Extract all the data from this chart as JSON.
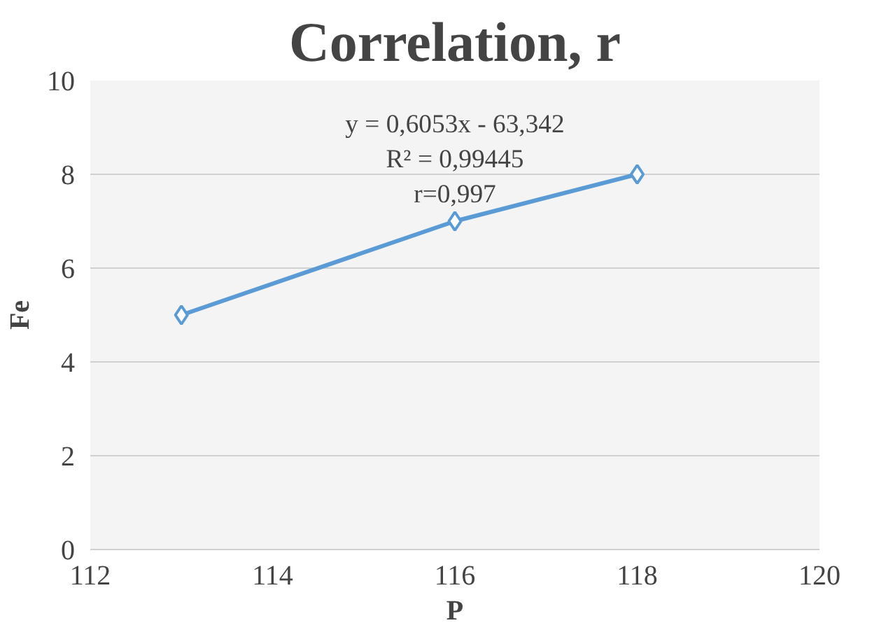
{
  "chart_data": {
    "type": "line",
    "title": "Correlation, r",
    "xlabel": "P",
    "ylabel": "Fe",
    "x": [
      113,
      116,
      118
    ],
    "series": [
      {
        "color": "#5b9bd5",
        "values": [
          5,
          7,
          8
        ]
      }
    ],
    "xlim": [
      112,
      120
    ],
    "xticks": [
      112,
      114,
      116,
      118,
      120
    ],
    "ylim": [
      0,
      10
    ],
    "yticks": [
      0,
      2,
      4,
      6,
      8,
      10
    ],
    "grid": "y",
    "marker": "diamond",
    "line_style": "solid",
    "annotations": [
      "y = 0,6053x - 63,342",
      "R² = 0,99445",
      "r=0,997"
    ]
  }
}
